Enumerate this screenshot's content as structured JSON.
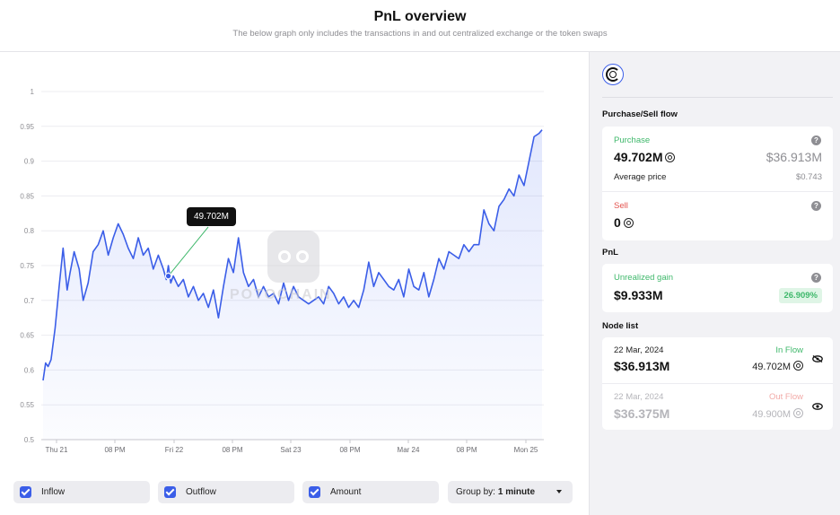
{
  "header": {
    "title": "PnL overview",
    "subtitle": "The below graph only includes the transactions in and out centralized exchange or the token swaps"
  },
  "watermark": {
    "text": "POTOCHAIN"
  },
  "tooltip": {
    "value": "49.702M"
  },
  "chart_data": {
    "type": "line",
    "title": "",
    "xlabel": "",
    "ylabel": "",
    "x_ticks": [
      "Thu 21",
      "08 PM",
      "Fri 22",
      "08 PM",
      "Sat 23",
      "08 PM",
      "Mar 24",
      "08 PM",
      "Mon 25"
    ],
    "y_ticks": [
      "1",
      "0.95",
      "0.9",
      "0.85",
      "0.8",
      "0.75",
      "0.7",
      "0.65",
      "0.6",
      "0.55",
      "0.5"
    ],
    "ylim": [
      0.5,
      1.0
    ],
    "x_range": [
      "Thu 21 00:00",
      "Mon 25 03:00"
    ],
    "grid": true,
    "series": [
      {
        "color": "#3b5ee8",
        "x_hours": [
          0,
          0.5,
          1,
          1.6,
          2.4,
          3.2,
          4,
          4.8,
          5.4,
          6.2,
          7.2,
          8,
          9,
          10,
          11,
          12,
          13,
          14,
          15,
          16,
          17,
          18,
          19,
          20,
          21,
          22,
          23,
          24,
          24.6,
          25,
          25.5,
          26,
          27,
          28,
          29,
          30,
          31,
          32,
          33,
          34,
          35,
          36,
          37,
          38,
          39,
          40,
          41,
          42,
          43,
          44,
          45,
          46,
          47,
          48,
          49,
          50,
          51,
          52,
          53,
          54,
          55,
          56,
          57,
          58,
          59,
          60,
          61,
          62,
          63,
          64,
          65,
          66,
          67,
          68,
          69,
          70,
          71,
          72,
          73,
          74,
          75,
          76,
          77,
          78,
          79,
          80,
          81,
          82,
          83,
          84,
          85,
          86,
          87,
          88,
          89,
          90,
          91,
          92,
          93,
          94,
          95,
          96,
          97,
          98,
          99,
          99.6
        ],
        "values": [
          0.585,
          0.61,
          0.605,
          0.615,
          0.66,
          0.72,
          0.775,
          0.715,
          0.74,
          0.77,
          0.745,
          0.7,
          0.725,
          0.77,
          0.78,
          0.8,
          0.765,
          0.79,
          0.81,
          0.795,
          0.775,
          0.76,
          0.79,
          0.765,
          0.775,
          0.745,
          0.765,
          0.745,
          0.73,
          0.75,
          0.725,
          0.735,
          0.72,
          0.73,
          0.705,
          0.72,
          0.7,
          0.71,
          0.69,
          0.715,
          0.675,
          0.72,
          0.76,
          0.74,
          0.79,
          0.74,
          0.72,
          0.73,
          0.705,
          0.72,
          0.705,
          0.71,
          0.695,
          0.725,
          0.7,
          0.72,
          0.705,
          0.7,
          0.695,
          0.7,
          0.705,
          0.695,
          0.72,
          0.71,
          0.695,
          0.705,
          0.69,
          0.7,
          0.69,
          0.715,
          0.755,
          0.72,
          0.74,
          0.73,
          0.72,
          0.715,
          0.73,
          0.705,
          0.745,
          0.72,
          0.715,
          0.74,
          0.705,
          0.73,
          0.76,
          0.745,
          0.77,
          0.765,
          0.76,
          0.78,
          0.77,
          0.78,
          0.78,
          0.83,
          0.81,
          0.8,
          0.835,
          0.845,
          0.86,
          0.85,
          0.88,
          0.865,
          0.9,
          0.935,
          0.94,
          0.945
        ]
      }
    ]
  },
  "controls": {
    "inflow_label": "Inflow",
    "outflow_label": "Outflow",
    "amount_label": "Amount",
    "group_prefix": "Group by:",
    "group_value": "1 minute"
  },
  "sidebar": {
    "purchase_sell_title": "Purchase/Sell flow",
    "purchase_label": "Purchase",
    "purchase_amount": "49.702M",
    "purchase_usd": "$36.913M",
    "avg_price_label": "Average price",
    "avg_price_value": "$0.743",
    "sell_label": "Sell",
    "sell_amount": "0",
    "pnl_title": "PnL",
    "unrealized_label": "Unrealized gain",
    "unrealized_value": "$9.933M",
    "unrealized_pct": "26.909%",
    "node_list_title": "Node list",
    "nodes": [
      {
        "date": "22 Mar, 2024",
        "usd": "$36.913M",
        "flow": "In Flow",
        "amount": "49.702M"
      },
      {
        "date": "22 Mar, 2024",
        "usd": "$36.375M",
        "flow": "Out Flow",
        "amount": "49.900M"
      }
    ]
  }
}
